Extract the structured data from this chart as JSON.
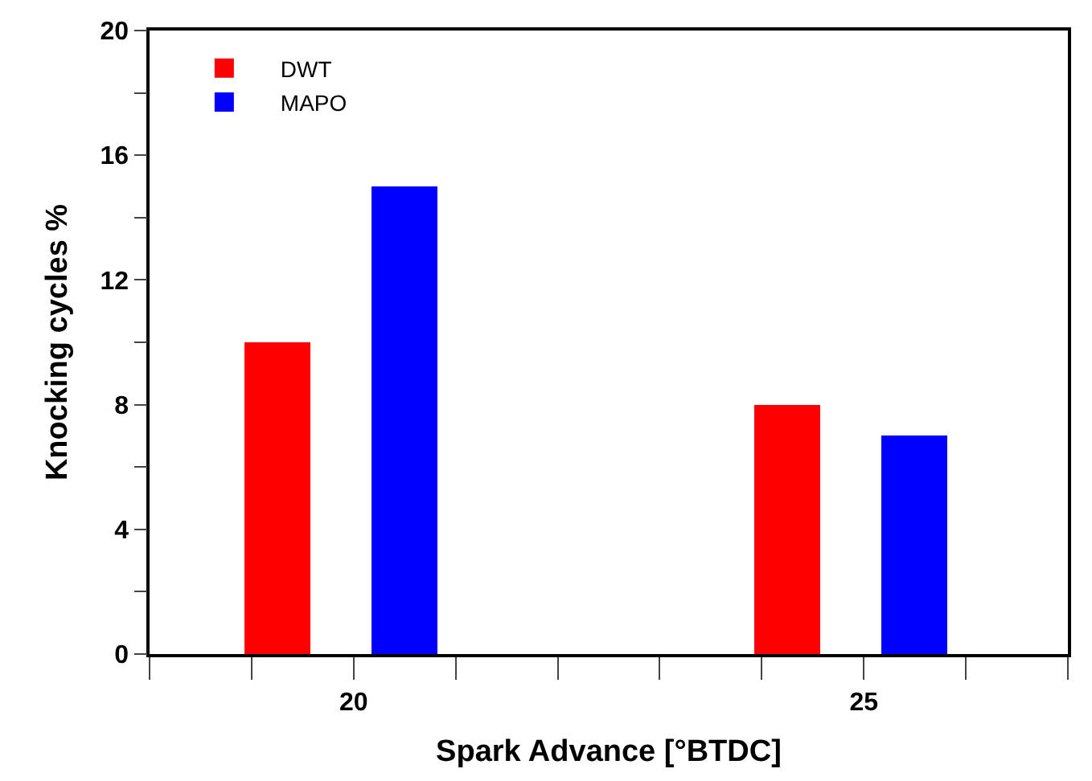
{
  "chart_data": {
    "type": "bar",
    "xlabel": "Spark Advance [°BTDC]",
    "ylabel": "Knocking cycles %",
    "series": [
      {
        "name": "DWT",
        "color": "#ff0000",
        "x": [
          19.25,
          24.25
        ],
        "values": [
          10,
          8
        ]
      },
      {
        "name": "MAPO",
        "color": "#0000ff",
        "x": [
          20.5,
          25.5
        ],
        "values": [
          15,
          7
        ]
      }
    ],
    "xlim": [
      18,
      27
    ],
    "xticks": [
      {
        "value": 18,
        "label": null
      },
      {
        "value": 19,
        "label": null
      },
      20,
      {
        "value": 21,
        "label": null
      },
      {
        "value": 22,
        "label": null
      },
      {
        "value": 23,
        "label": null
      },
      {
        "value": 24,
        "label": null
      },
      25,
      {
        "value": 26,
        "label": null
      },
      {
        "value": 27,
        "label": null
      }
    ],
    "ylim": [
      0,
      20
    ],
    "yticks": [
      0,
      {
        "value": 2,
        "label": null
      },
      4,
      {
        "value": 6,
        "label": null
      },
      8,
      {
        "value": 10,
        "label": null
      },
      12,
      {
        "value": 14,
        "label": null
      },
      16,
      {
        "value": 18,
        "label": null
      },
      20
    ],
    "legend": "top left"
  }
}
